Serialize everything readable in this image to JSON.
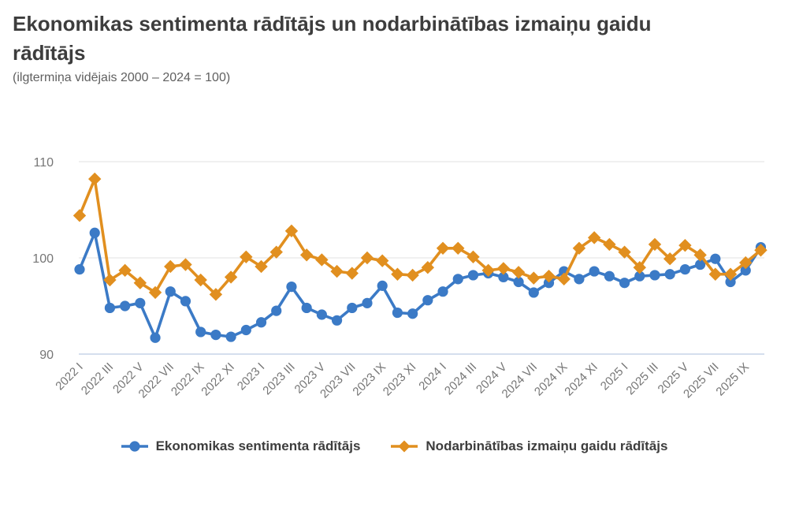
{
  "title": "Ekonomikas sentimenta rādītājs un nodarbinātības izmaiņu gaidu rādītājs",
  "subtitle": "(ilgtermiņa vidējais 2000 – 2024 = 100)",
  "colors": {
    "series1": "#3b7ac6",
    "series2": "#e18f1f",
    "grid": "#e2e2e2",
    "baseline": "#c7d3e8",
    "axis_text": "#767676",
    "title_text": "#3d3d3d",
    "subtitle_text": "#606060",
    "legend_text": "#3d3d3d",
    "background": "#ffffff"
  },
  "legend": {
    "items": [
      {
        "label": "Ekonomikas sentimenta rādītājs",
        "marker": "circle",
        "color_key": "series1"
      },
      {
        "label": "Nodarbinātības izmaiņu gaidu rādītājs",
        "marker": "diamond",
        "color_key": "series2"
      }
    ]
  },
  "chart_data": {
    "type": "line",
    "title": "Ekonomikas sentimenta rādītājs un nodarbinātības izmaiņu gaidu rādītājs",
    "subtitle": "(ilgtermiņa vidējais 2000 – 2024 = 100)",
    "x": [
      "2022 I",
      "2022 II",
      "2022 III",
      "2022 IV",
      "2022 V",
      "2022 VI",
      "2022 VII",
      "2022 VIII",
      "2022 IX",
      "2022 X",
      "2022 XI",
      "2022 XII",
      "2023 I",
      "2023 II",
      "2023 III",
      "2023 IV",
      "2023 V",
      "2023 VI",
      "2023 VII",
      "2023 VIII",
      "2023 IX",
      "2023 X",
      "2023 XI",
      "2023 XII",
      "2024 I",
      "2024 II",
      "2024 III",
      "2024 IV",
      "2024 V",
      "2024 VI",
      "2024 VII",
      "2024 VIII",
      "2024 IX",
      "2024 X",
      "2024 XI",
      "2024 XII",
      "2025 I",
      "2025 II",
      "2025 III",
      "2025 IV",
      "2025 V",
      "2025 VI",
      "2025 VII",
      "2025 VIII",
      "2025 IX",
      "2025 X"
    ],
    "tick_every": 2,
    "yticks": [
      90,
      100,
      110
    ],
    "ylim": [
      87.5,
      112
    ],
    "grid": true,
    "legend_position": "bottom",
    "series": [
      {
        "name": "Ekonomikas sentimenta rādītājs",
        "marker": "circle",
        "color_key": "series1",
        "values": [
          98.8,
          102.6,
          94.8,
          95.0,
          95.3,
          91.7,
          96.5,
          95.5,
          92.3,
          92.0,
          91.8,
          92.5,
          93.3,
          94.5,
          97.0,
          94.8,
          94.1,
          93.5,
          94.8,
          95.3,
          97.1,
          94.3,
          94.2,
          95.6,
          96.5,
          97.8,
          98.2,
          98.4,
          98.0,
          97.5,
          96.4,
          97.4,
          98.6,
          97.8,
          98.6,
          98.1,
          97.4,
          98.1,
          98.2,
          98.3,
          98.8,
          99.3,
          99.9,
          97.5,
          98.7,
          101.1
        ]
      },
      {
        "name": "Nodarbinātības izmaiņu gaidu rādītājs",
        "marker": "diamond",
        "color_key": "series2",
        "values": [
          104.4,
          108.2,
          97.7,
          98.7,
          97.4,
          96.4,
          99.1,
          99.3,
          97.7,
          96.2,
          98.0,
          100.1,
          99.1,
          100.6,
          102.8,
          100.3,
          99.8,
          98.6,
          98.4,
          100.0,
          99.7,
          98.3,
          98.2,
          99.0,
          101.0,
          101.0,
          100.1,
          98.7,
          98.9,
          98.5,
          97.9,
          98.1,
          97.8,
          101.0,
          102.1,
          101.4,
          100.6,
          99.0,
          101.4,
          99.9,
          101.3,
          100.3,
          98.3,
          98.3,
          99.5,
          100.8
        ]
      }
    ]
  }
}
